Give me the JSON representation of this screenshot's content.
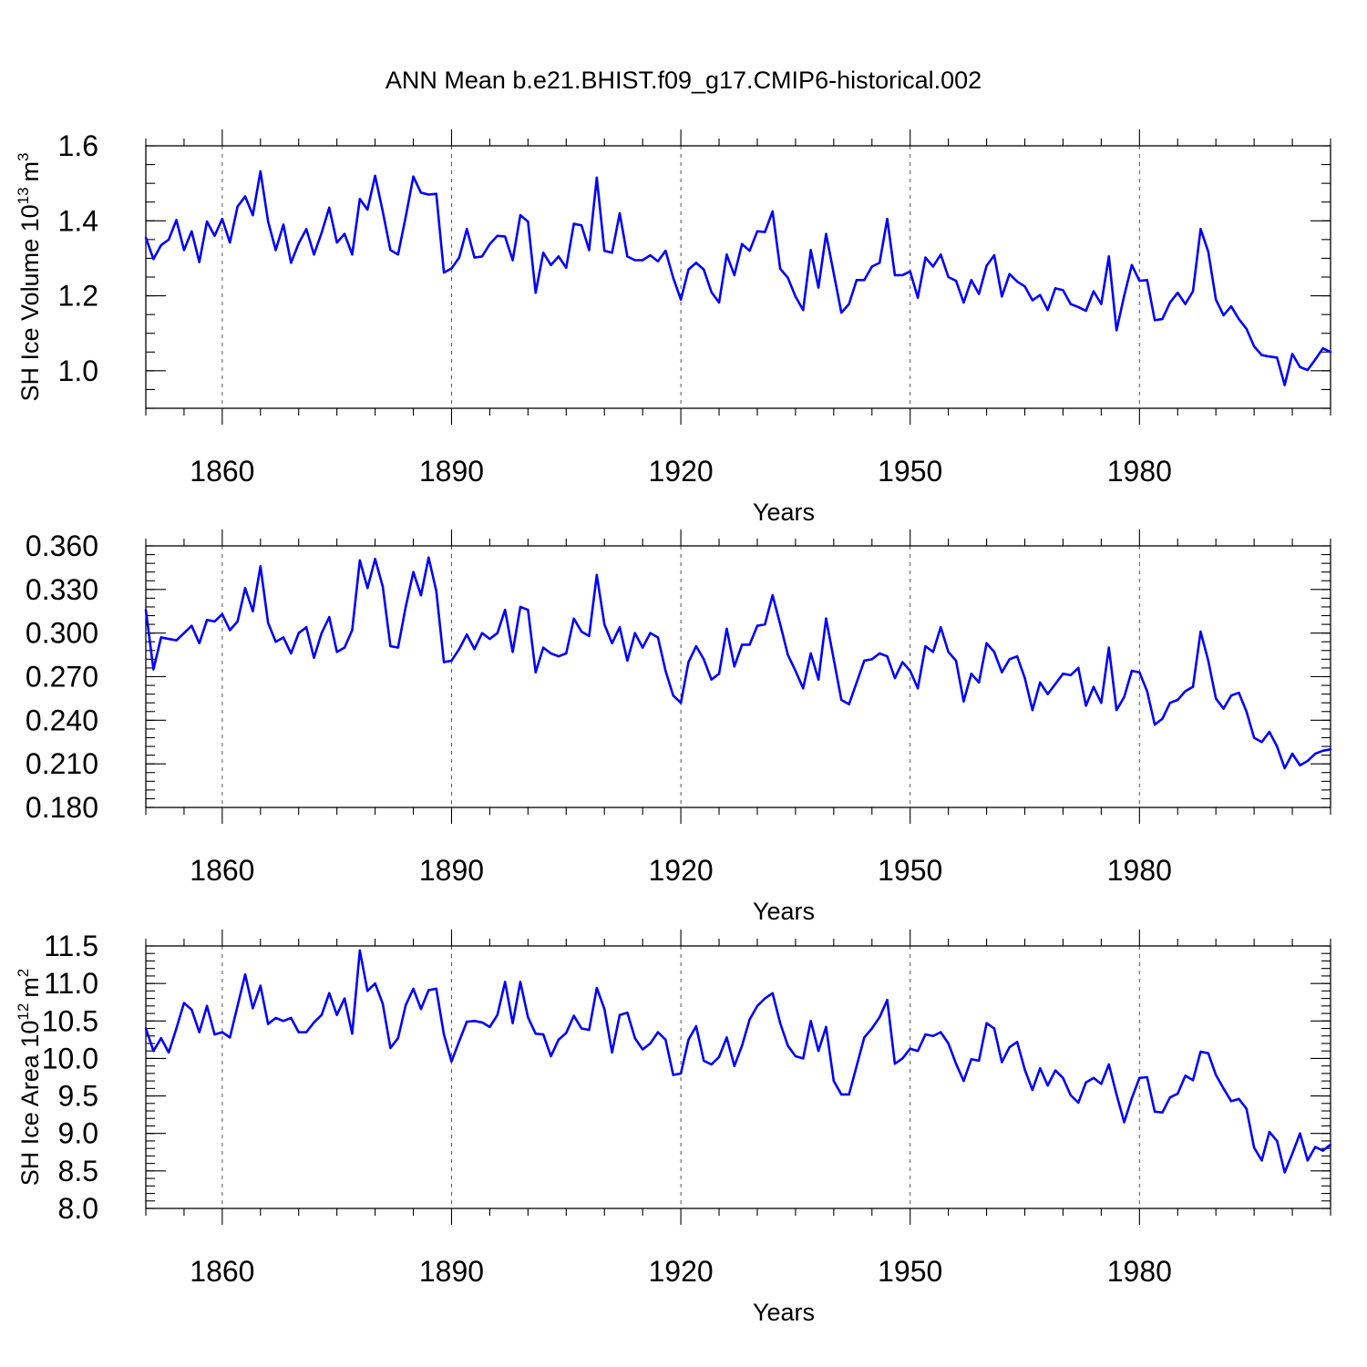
{
  "title": "ANN Mean b.e21.BHIST.f09_g17.CMIP6-historical.002",
  "colors": {
    "series": "#0000ff",
    "axis": "#000000",
    "grid": "#555555"
  },
  "chart_data": [
    {
      "type": "line",
      "ylabel_main": "SH Ice Volume 10",
      "ylabel_exp": "13",
      "ylabel_unit": "m",
      "ylabel_unit_exp": "3",
      "xlabel": "Years",
      "xlim": [
        1850,
        2005
      ],
      "ylim": [
        0.9,
        1.6
      ],
      "yticks": [
        1.0,
        1.2,
        1.4,
        1.6
      ],
      "ytick_labels": [
        "1.0",
        "1.2",
        "1.4",
        "1.6"
      ],
      "yminor_step": 0.05,
      "xticks": [
        1860,
        1890,
        1920,
        1950,
        1980
      ],
      "xtick_labels": [
        "1860",
        "1890",
        "1920",
        "1950",
        "1980"
      ],
      "xminor_step": 5,
      "grid": "vertical dashed at major x ticks",
      "x_start": 1850,
      "values": [
        1.355,
        1.298,
        1.335,
        1.35,
        1.402,
        1.322,
        1.372,
        1.29,
        1.398,
        1.36,
        1.405,
        1.342,
        1.438,
        1.465,
        1.415,
        1.532,
        1.398,
        1.322,
        1.39,
        1.288,
        1.34,
        1.378,
        1.31,
        1.368,
        1.435,
        1.342,
        1.365,
        1.31,
        1.458,
        1.43,
        1.52,
        1.425,
        1.322,
        1.31,
        1.41,
        1.518,
        1.475,
        1.47,
        1.472,
        1.262,
        1.273,
        1.302,
        1.378,
        1.302,
        1.305,
        1.338,
        1.36,
        1.358,
        1.295,
        1.415,
        1.398,
        1.208,
        1.315,
        1.282,
        1.305,
        1.275,
        1.392,
        1.388,
        1.322,
        1.515,
        1.32,
        1.315,
        1.42,
        1.305,
        1.295,
        1.295,
        1.308,
        1.292,
        1.32,
        1.248,
        1.19,
        1.27,
        1.288,
        1.27,
        1.21,
        1.182,
        1.31,
        1.255,
        1.338,
        1.32,
        1.372,
        1.37,
        1.425,
        1.272,
        1.248,
        1.198,
        1.162,
        1.322,
        1.222,
        1.365,
        1.26,
        1.155,
        1.178,
        1.242,
        1.242,
        1.278,
        1.288,
        1.405,
        1.255,
        1.255,
        1.265,
        1.195,
        1.302,
        1.278,
        1.31,
        1.25,
        1.24,
        1.182,
        1.242,
        1.205,
        1.28,
        1.308,
        1.198,
        1.258,
        1.238,
        1.225,
        1.188,
        1.202,
        1.162,
        1.22,
        1.215,
        1.178,
        1.17,
        1.16,
        1.212,
        1.178,
        1.305,
        1.108,
        1.2,
        1.282,
        1.24,
        1.242,
        1.135,
        1.138,
        1.182,
        1.208,
        1.178,
        1.212,
        1.378,
        1.318,
        1.19,
        1.148,
        1.172,
        1.138,
        1.112,
        1.065,
        1.042,
        1.038,
        1.035,
        0.962,
        1.045,
        1.01,
        1.002,
        1.03,
        1.06,
        1.05
      ]
    },
    {
      "type": "line",
      "ylabel_main": "",
      "ylabel_exp": "",
      "ylabel_unit": "",
      "ylabel_unit_exp": "",
      "xlabel": "Years",
      "xlim": [
        1850,
        2005
      ],
      "ylim": [
        0.18,
        0.36
      ],
      "yticks": [
        0.18,
        0.21,
        0.24,
        0.27,
        0.3,
        0.33,
        0.36
      ],
      "ytick_labels": [
        "0.180",
        "0.210",
        "0.240",
        "0.270",
        "0.300",
        "0.330",
        "0.360"
      ],
      "yminor_step": 0.006,
      "xticks": [
        1860,
        1890,
        1920,
        1950,
        1980
      ],
      "xtick_labels": [
        "1860",
        "1890",
        "1920",
        "1950",
        "1980"
      ],
      "xminor_step": 5,
      "grid": "vertical dashed at major x ticks",
      "x_start": 1850,
      "values": [
        0.316,
        0.275,
        0.297,
        0.296,
        0.295,
        0.3,
        0.305,
        0.293,
        0.309,
        0.308,
        0.313,
        0.302,
        0.308,
        0.331,
        0.315,
        0.346,
        0.307,
        0.294,
        0.297,
        0.286,
        0.3,
        0.304,
        0.283,
        0.3,
        0.311,
        0.287,
        0.29,
        0.302,
        0.35,
        0.331,
        0.351,
        0.332,
        0.291,
        0.29,
        0.318,
        0.342,
        0.326,
        0.352,
        0.329,
        0.28,
        0.281,
        0.289,
        0.299,
        0.289,
        0.3,
        0.296,
        0.3,
        0.316,
        0.287,
        0.318,
        0.316,
        0.273,
        0.29,
        0.286,
        0.284,
        0.286,
        0.31,
        0.301,
        0.298,
        0.34,
        0.306,
        0.293,
        0.304,
        0.281,
        0.3,
        0.29,
        0.3,
        0.297,
        0.274,
        0.257,
        0.252,
        0.28,
        0.291,
        0.282,
        0.268,
        0.272,
        0.303,
        0.277,
        0.292,
        0.292,
        0.305,
        0.306,
        0.326,
        0.306,
        0.285,
        0.274,
        0.262,
        0.286,
        0.268,
        0.31,
        0.282,
        0.254,
        0.251,
        0.266,
        0.281,
        0.282,
        0.286,
        0.284,
        0.269,
        0.28,
        0.274,
        0.262,
        0.291,
        0.287,
        0.304,
        0.287,
        0.281,
        0.253,
        0.272,
        0.266,
        0.293,
        0.287,
        0.273,
        0.282,
        0.284,
        0.269,
        0.247,
        0.266,
        0.258,
        0.265,
        0.272,
        0.271,
        0.276,
        0.25,
        0.263,
        0.252,
        0.29,
        0.247,
        0.256,
        0.274,
        0.273,
        0.26,
        0.237,
        0.241,
        0.252,
        0.254,
        0.26,
        0.263,
        0.301,
        0.281,
        0.255,
        0.248,
        0.257,
        0.259,
        0.246,
        0.228,
        0.225,
        0.232,
        0.222,
        0.207,
        0.217,
        0.209,
        0.212,
        0.217,
        0.219,
        0.22
      ]
    },
    {
      "type": "line",
      "ylabel_main": "SH Ice Area 10",
      "ylabel_exp": "12",
      "ylabel_unit": "m",
      "ylabel_unit_exp": "2",
      "xlabel": "Years",
      "xlim": [
        1850,
        2005
      ],
      "ylim": [
        8.0,
        11.5
      ],
      "yticks": [
        8.0,
        8.5,
        9.0,
        9.5,
        10.0,
        10.5,
        11.0,
        11.5
      ],
      "ytick_labels": [
        "8.0",
        "8.5",
        "9.0",
        "9.5",
        "10.0",
        "10.5",
        "11.0",
        "11.5"
      ],
      "yminor_step": 0.1,
      "xticks": [
        1860,
        1890,
        1920,
        1950,
        1980
      ],
      "xtick_labels": [
        "1860",
        "1890",
        "1920",
        "1950",
        "1980"
      ],
      "xminor_step": 5,
      "grid": "vertical dashed at major x ticks",
      "x_start": 1850,
      "values": [
        10.4,
        10.1,
        10.27,
        10.08,
        10.4,
        10.74,
        10.65,
        10.35,
        10.7,
        10.32,
        10.35,
        10.28,
        10.7,
        11.12,
        10.67,
        10.97,
        10.46,
        10.54,
        10.5,
        10.54,
        10.35,
        10.35,
        10.48,
        10.58,
        10.87,
        10.58,
        10.8,
        10.33,
        11.44,
        10.9,
        11.0,
        10.73,
        10.14,
        10.27,
        10.71,
        10.93,
        10.66,
        10.91,
        10.93,
        10.32,
        9.96,
        10.23,
        10.49,
        10.5,
        10.48,
        10.42,
        10.58,
        11.02,
        10.47,
        11.02,
        10.55,
        10.33,
        10.32,
        10.03,
        10.25,
        10.34,
        10.57,
        10.4,
        10.38,
        10.94,
        10.66,
        10.08,
        10.58,
        10.61,
        10.27,
        10.12,
        10.2,
        10.35,
        10.25,
        9.78,
        9.8,
        10.25,
        10.43,
        9.97,
        9.92,
        10.02,
        10.28,
        9.9,
        10.17,
        10.52,
        10.7,
        10.8,
        10.87,
        10.47,
        10.17,
        10.03,
        10.0,
        10.5,
        10.1,
        10.42,
        9.7,
        9.52,
        9.52,
        9.9,
        10.28,
        10.4,
        10.55,
        10.78,
        9.93,
        10.0,
        10.13,
        10.1,
        10.32,
        10.3,
        10.35,
        10.2,
        9.93,
        9.7,
        9.99,
        9.97,
        10.47,
        10.4,
        9.95,
        10.15,
        10.22,
        9.85,
        9.58,
        9.87,
        9.64,
        9.84,
        9.74,
        9.51,
        9.41,
        9.68,
        9.74,
        9.66,
        9.92,
        9.52,
        9.15,
        9.47,
        9.74,
        9.75,
        9.29,
        9.28,
        9.48,
        9.53,
        9.77,
        9.71,
        10.09,
        10.07,
        9.78,
        9.6,
        9.43,
        9.46,
        9.33,
        8.81,
        8.64,
        9.02,
        8.9,
        8.48,
        8.73,
        9.0,
        8.64,
        8.82,
        8.77,
        8.85
      ]
    }
  ]
}
